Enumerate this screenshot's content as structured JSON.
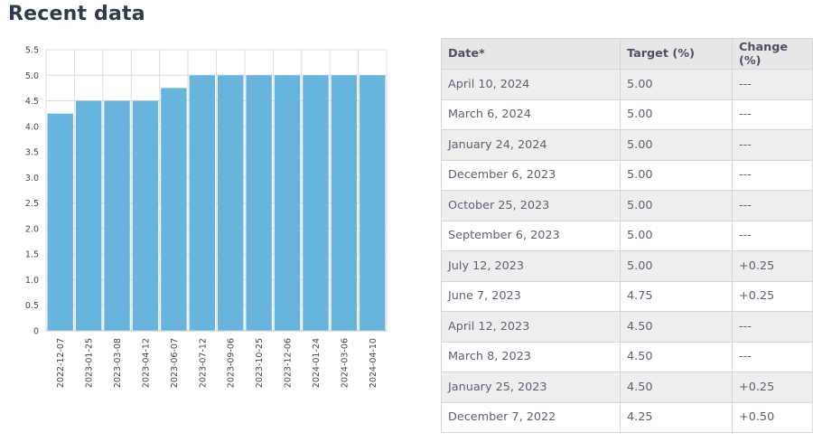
{
  "heading": "Recent data",
  "table": {
    "headers": [
      "Date*",
      "Target (%)",
      "Change (%)"
    ],
    "rows": [
      [
        "April 10, 2024",
        "5.00",
        "---"
      ],
      [
        "March 6, 2024",
        "5.00",
        "---"
      ],
      [
        "January 24, 2024",
        "5.00",
        "---"
      ],
      [
        "December 6, 2023",
        "5.00",
        "---"
      ],
      [
        "October 25, 2023",
        "5.00",
        "---"
      ],
      [
        "September 6, 2023",
        "5.00",
        "---"
      ],
      [
        "July 12, 2023",
        "5.00",
        "+0.25"
      ],
      [
        "June 7, 2023",
        "4.75",
        "+0.25"
      ],
      [
        "April 12, 2023",
        "4.50",
        "---"
      ],
      [
        "March 8, 2023",
        "4.50",
        "---"
      ],
      [
        "January 25, 2023",
        "4.50",
        "+0.25"
      ],
      [
        "December 7, 2022",
        "4.25",
        "+0.50"
      ]
    ]
  },
  "chart_data": {
    "type": "bar",
    "categories": [
      "2022-12-07",
      "2023-01-25",
      "2023-03-08",
      "2023-04-12",
      "2023-06-07",
      "2023-07-12",
      "2023-09-06",
      "2023-10-25",
      "2023-12-06",
      "2024-01-24",
      "2024-03-06",
      "2024-04-10"
    ],
    "values": [
      4.25,
      4.5,
      4.5,
      4.5,
      4.75,
      5.0,
      5.0,
      5.0,
      5.0,
      5.0,
      5.0,
      5.0
    ],
    "ylim": [
      0,
      5.5
    ],
    "yticks": [
      "0",
      "0.5",
      "1.0",
      "1.5",
      "2.0",
      "2.5",
      "3.0",
      "3.5",
      "4.0",
      "4.5",
      "5.0",
      "5.5"
    ],
    "grid": true,
    "bar_color": "#67b4dd",
    "grid_color": "#dddddd"
  }
}
